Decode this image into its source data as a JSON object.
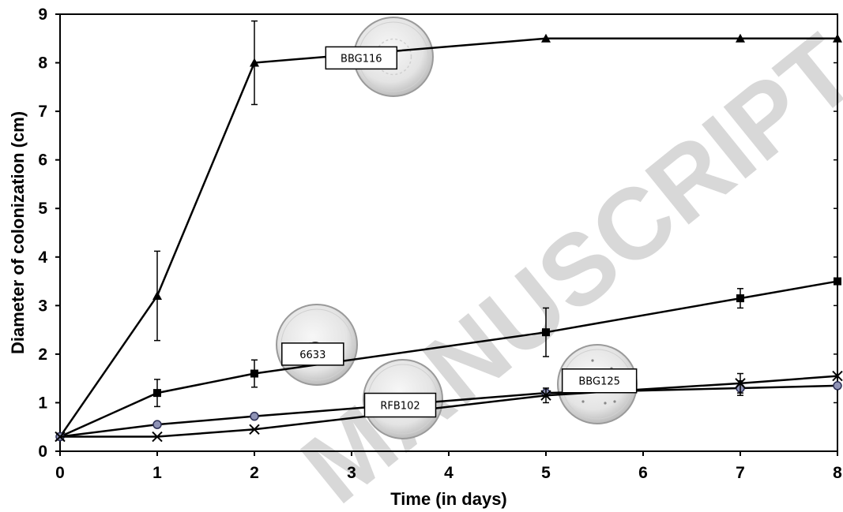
{
  "chart_data": {
    "type": "line",
    "xlabel": "Time (in days)",
    "ylabel": "Diameter of colonization (cm)",
    "xlim": [
      0,
      8
    ],
    "ylim": [
      0,
      9
    ],
    "x_categories": [
      "0",
      "1",
      "2",
      "5",
      "7",
      "8"
    ],
    "x_tick_labels": [
      "0",
      "1",
      "2",
      "3",
      "4",
      "5",
      "6",
      "7",
      "8"
    ],
    "y_tick_labels": [
      "0",
      "1",
      "2",
      "3",
      "4",
      "5",
      "6",
      "7",
      "8",
      "9"
    ],
    "grid": false,
    "series": [
      {
        "name": "BBG116",
        "marker": "triangle",
        "x": [
          0,
          1,
          2,
          5,
          7,
          8
        ],
        "values": [
          0.3,
          3.2,
          8.0,
          8.5,
          8.5,
          8.5
        ],
        "errors": [
          0,
          0.92,
          0.86,
          0,
          0,
          0
        ]
      },
      {
        "name": "6633",
        "marker": "square",
        "x": [
          0,
          1,
          2,
          5,
          7,
          8
        ],
        "values": [
          0.3,
          1.2,
          1.6,
          2.45,
          3.15,
          3.5
        ],
        "errors": [
          0,
          0.28,
          0.28,
          0.5,
          0.2,
          0
        ]
      },
      {
        "name": "RFB102",
        "marker": "circle",
        "x": [
          0,
          1,
          2,
          5,
          7,
          8
        ],
        "values": [
          0.3,
          0.55,
          0.72,
          1.2,
          1.3,
          1.35
        ],
        "errors": [
          0,
          0,
          0,
          0,
          0.15,
          0
        ]
      },
      {
        "name": "BBG125",
        "marker": "x",
        "x": [
          0,
          1,
          2,
          5,
          7,
          8
        ],
        "values": [
          0.3,
          0.3,
          0.45,
          1.15,
          1.4,
          1.55
        ],
        "errors": [
          0,
          0,
          0,
          0.15,
          0.2,
          0
        ]
      }
    ],
    "annotations": [
      {
        "label": "BBG116",
        "x": 3.1,
        "y": 8.1
      },
      {
        "label": "6633",
        "x": 2.6,
        "y": 2.0
      },
      {
        "label": "RFB102",
        "x": 3.5,
        "y": 0.95
      },
      {
        "label": "BBG125",
        "x": 5.55,
        "y": 1.45
      }
    ],
    "watermark": "MANUSCRIPT"
  }
}
